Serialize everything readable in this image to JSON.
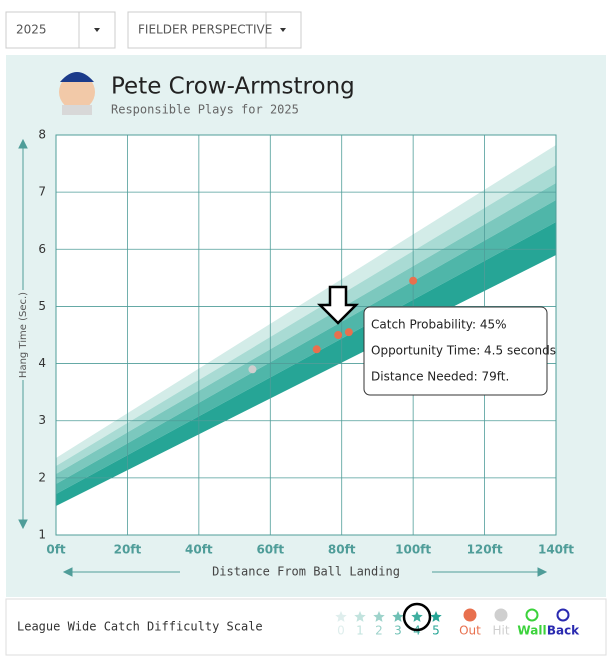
{
  "ui": {
    "year": "2025",
    "perspective": "FIELDER PERSPECTIVE",
    "scale_title": "League Wide Catch Difficulty Scale",
    "levels": [
      "0",
      "1",
      "2",
      "3",
      "4",
      "5"
    ],
    "extra_legend": [
      {
        "name": "Wall",
        "color": "#3bd23b"
      },
      {
        "name": "Back",
        "color": "#2a2ab0"
      }
    ],
    "tooltip": [
      "Catch Probability: 45%",
      "Opportunity Time: 4.5 seconds",
      "Distance Needed: 79ft."
    ]
  },
  "chart_data": {
    "type": "scatter",
    "title": "Pete Crow-Armstrong",
    "subtitle": "Responsible Plays for 2025",
    "x_label": "Distance From Ball Landing",
    "y_label": "Hang Time (Sec.)",
    "xlim": [
      0,
      140
    ],
    "ylim": [
      1,
      8
    ],
    "xticks": [
      {
        "value": 0,
        "label": "0ft"
      },
      {
        "value": 20,
        "label": "20ft"
      },
      {
        "value": 40,
        "label": "40ft"
      },
      {
        "value": 60,
        "label": "60ft"
      },
      {
        "value": 80,
        "label": "80ft"
      },
      {
        "value": 100,
        "label": "100ft"
      },
      {
        "value": 120,
        "label": "120ft"
      },
      {
        "value": 140,
        "label": "140ft"
      }
    ],
    "yticks": [
      1,
      2,
      3,
      4,
      5,
      6,
      7,
      8
    ],
    "grid": true,
    "series": [
      {
        "name": "Out",
        "color": "#e8704e",
        "x": [
          73,
          79,
          82,
          100
        ],
        "values": [
          4.25,
          4.5,
          4.55,
          5.45
        ]
      },
      {
        "name": "Hit",
        "color": "#cfcfcf",
        "x": [
          55
        ],
        "values": [
          3.9
        ]
      }
    ]
  }
}
